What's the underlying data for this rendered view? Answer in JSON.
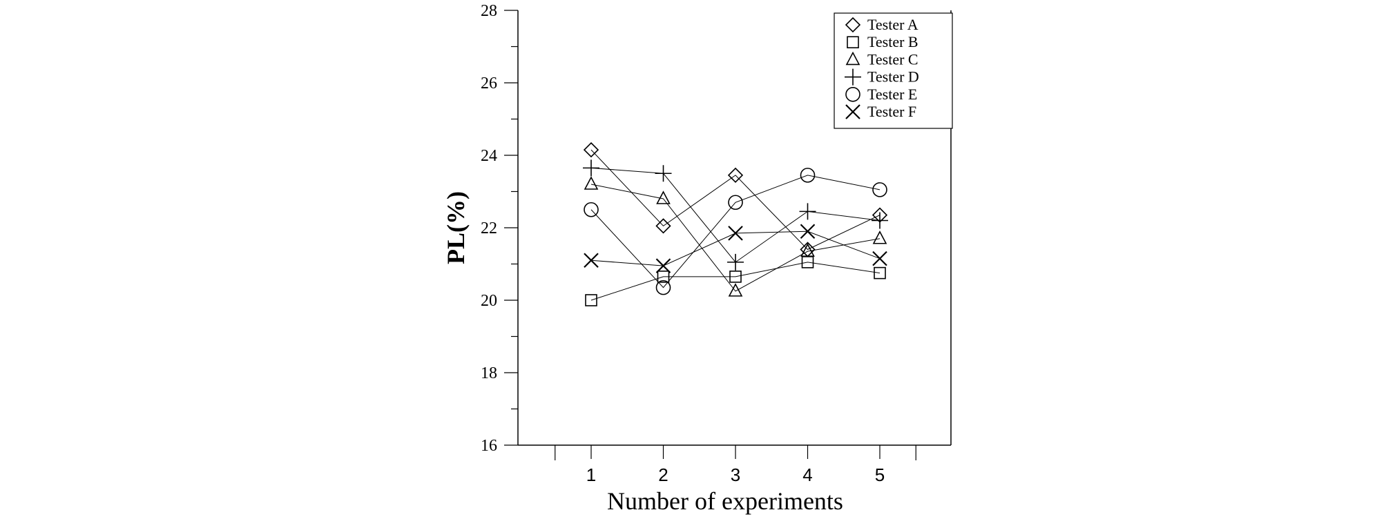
{
  "chart_data": {
    "type": "line",
    "title": "",
    "xlabel": "Number of experiments",
    "ylabel": "PL(%)",
    "x": [
      1,
      2,
      3,
      4,
      5
    ],
    "xlim": [
      -0.0,
      6.0
    ],
    "ylim": [
      16,
      28
    ],
    "y_ticks": [
      16,
      18,
      20,
      22,
      24,
      26,
      28
    ],
    "x_ticks": [
      1,
      2,
      3,
      4,
      5
    ],
    "grid": false,
    "legend_position": "top-right",
    "series": [
      {
        "name": "Tester A",
        "marker": "diamond",
        "values": [
          24.15,
          22.05,
          23.45,
          21.4,
          22.35
        ]
      },
      {
        "name": "Tester B",
        "marker": "square",
        "values": [
          20.0,
          20.65,
          20.65,
          21.05,
          20.75
        ]
      },
      {
        "name": "Tester C",
        "marker": "triangle",
        "values": [
          23.2,
          22.8,
          20.25,
          21.35,
          21.7
        ]
      },
      {
        "name": "Tester D",
        "marker": "plus",
        "values": [
          23.65,
          23.5,
          21.05,
          22.45,
          22.2
        ]
      },
      {
        "name": "Tester E",
        "marker": "circle",
        "values": [
          22.5,
          20.35,
          22.7,
          23.45,
          23.05
        ]
      },
      {
        "name": "Tester F",
        "marker": "cross",
        "values": [
          21.1,
          20.95,
          21.85,
          21.9,
          21.15
        ]
      }
    ]
  }
}
